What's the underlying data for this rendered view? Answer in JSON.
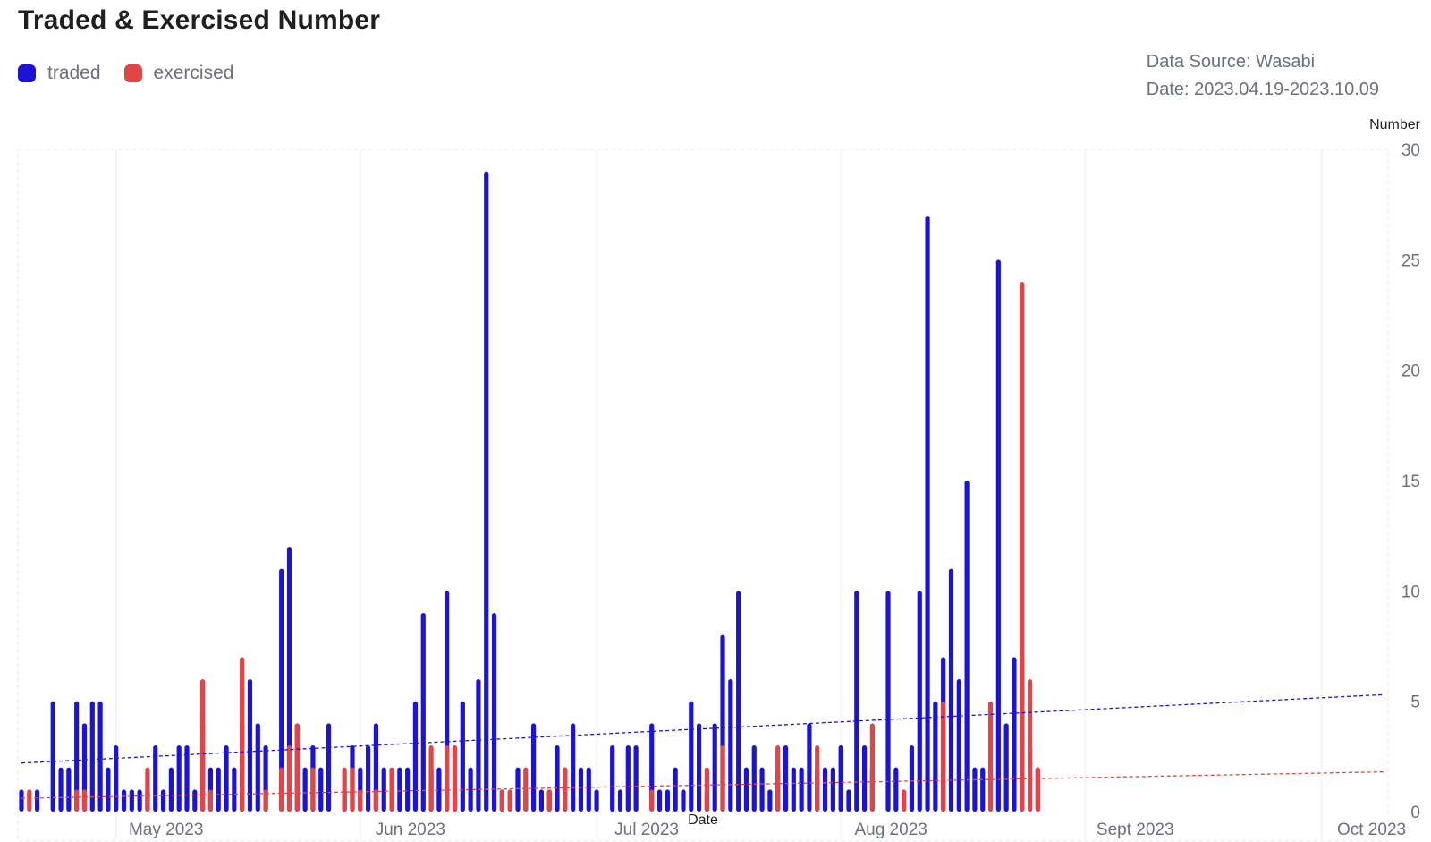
{
  "title": "Traded & Exercised Number",
  "legend": {
    "traded": "traded",
    "exercised": "exercised"
  },
  "meta": {
    "source": "Data Source: Wasabi",
    "date_range": "Date: 2023.04.19-2023.10.09"
  },
  "colors": {
    "traded": "#1b14d8",
    "exercised": "#e04646",
    "grid": "#e6e8ee"
  },
  "chart_data": {
    "type": "bar",
    "title": "Traded & Exercised Number",
    "xlabel": "Date",
    "ylabel": "Number",
    "ylim": [
      0,
      30
    ],
    "yticks": [
      0,
      5,
      10,
      15,
      20,
      25,
      30
    ],
    "x_tick_labels": [
      "May 2023",
      "Jun 2023",
      "Jul 2023",
      "Aug 2023",
      "Sept 2023",
      "Oct 2023"
    ],
    "x_tick_dates": [
      "2023-05-01",
      "2023-06-01",
      "2023-07-01",
      "2023-08-01",
      "2023-09-01",
      "2023-10-01"
    ],
    "x_range": [
      "2023-04-19",
      "2023-10-09"
    ],
    "legend_position": "top-left",
    "grid": false,
    "series": [
      {
        "name": "traded",
        "points": [
          [
            "2023-04-19",
            1
          ],
          [
            "2023-04-21",
            1
          ],
          [
            "2023-04-23",
            5
          ],
          [
            "2023-04-24",
            2
          ],
          [
            "2023-04-25",
            2
          ],
          [
            "2023-04-26",
            5
          ],
          [
            "2023-04-27",
            4
          ],
          [
            "2023-04-28",
            5
          ],
          [
            "2023-04-29",
            5
          ],
          [
            "2023-04-30",
            2
          ],
          [
            "2023-05-01",
            3
          ],
          [
            "2023-05-02",
            1
          ],
          [
            "2023-05-03",
            1
          ],
          [
            "2023-05-04",
            1
          ],
          [
            "2023-05-05",
            1
          ],
          [
            "2023-05-06",
            3
          ],
          [
            "2023-05-07",
            1
          ],
          [
            "2023-05-08",
            2
          ],
          [
            "2023-05-09",
            3
          ],
          [
            "2023-05-10",
            3
          ],
          [
            "2023-05-11",
            1
          ],
          [
            "2023-05-12",
            4
          ],
          [
            "2023-05-13",
            2
          ],
          [
            "2023-05-14",
            2
          ],
          [
            "2023-05-15",
            3
          ],
          [
            "2023-05-16",
            2
          ],
          [
            "2023-05-17",
            4
          ],
          [
            "2023-05-18",
            6
          ],
          [
            "2023-05-19",
            4
          ],
          [
            "2023-05-20",
            3
          ],
          [
            "2023-05-22",
            11
          ],
          [
            "2023-05-23",
            12
          ],
          [
            "2023-05-24",
            4
          ],
          [
            "2023-05-25",
            2
          ],
          [
            "2023-05-26",
            3
          ],
          [
            "2023-05-27",
            2
          ],
          [
            "2023-05-28",
            4
          ],
          [
            "2023-05-30",
            1
          ],
          [
            "2023-05-31",
            3
          ],
          [
            "2023-06-01",
            2
          ],
          [
            "2023-06-02",
            3
          ],
          [
            "2023-06-03",
            4
          ],
          [
            "2023-06-04",
            2
          ],
          [
            "2023-06-06",
            2
          ],
          [
            "2023-06-07",
            2
          ],
          [
            "2023-06-08",
            5
          ],
          [
            "2023-06-09",
            9
          ],
          [
            "2023-06-10",
            2
          ],
          [
            "2023-06-11",
            2
          ],
          [
            "2023-06-12",
            10
          ],
          [
            "2023-06-13",
            1
          ],
          [
            "2023-06-14",
            5
          ],
          [
            "2023-06-15",
            2
          ],
          [
            "2023-06-16",
            6
          ],
          [
            "2023-06-17",
            29
          ],
          [
            "2023-06-18",
            9
          ],
          [
            "2023-06-19",
            1
          ],
          [
            "2023-06-21",
            2
          ],
          [
            "2023-06-22",
            1
          ],
          [
            "2023-06-23",
            4
          ],
          [
            "2023-06-24",
            1
          ],
          [
            "2023-06-25",
            1
          ],
          [
            "2023-06-26",
            3
          ],
          [
            "2023-06-27",
            2
          ],
          [
            "2023-06-28",
            4
          ],
          [
            "2023-06-29",
            2
          ],
          [
            "2023-06-30",
            2
          ],
          [
            "2023-07-01",
            1
          ],
          [
            "2023-07-03",
            3
          ],
          [
            "2023-07-04",
            1
          ],
          [
            "2023-07-05",
            3
          ],
          [
            "2023-07-06",
            3
          ],
          [
            "2023-07-08",
            4
          ],
          [
            "2023-07-09",
            1
          ],
          [
            "2023-07-10",
            1
          ],
          [
            "2023-07-11",
            2
          ],
          [
            "2023-07-12",
            1
          ],
          [
            "2023-07-13",
            5
          ],
          [
            "2023-07-14",
            4
          ],
          [
            "2023-07-15",
            1
          ],
          [
            "2023-07-16",
            4
          ],
          [
            "2023-07-17",
            8
          ],
          [
            "2023-07-18",
            6
          ],
          [
            "2023-07-19",
            10
          ],
          [
            "2023-07-20",
            2
          ],
          [
            "2023-07-21",
            3
          ],
          [
            "2023-07-22",
            2
          ],
          [
            "2023-07-23",
            1
          ],
          [
            "2023-07-24",
            2
          ],
          [
            "2023-07-25",
            3
          ],
          [
            "2023-07-26",
            2
          ],
          [
            "2023-07-27",
            2
          ],
          [
            "2023-07-28",
            4
          ],
          [
            "2023-07-29",
            2
          ],
          [
            "2023-07-30",
            2
          ],
          [
            "2023-07-31",
            2
          ],
          [
            "2023-08-01",
            3
          ],
          [
            "2023-08-02",
            1
          ],
          [
            "2023-08-03",
            10
          ],
          [
            "2023-08-04",
            3
          ],
          [
            "2023-08-05",
            2
          ],
          [
            "2023-08-07",
            10
          ],
          [
            "2023-08-08",
            2
          ],
          [
            "2023-08-10",
            3
          ],
          [
            "2023-08-11",
            10
          ],
          [
            "2023-08-12",
            27
          ],
          [
            "2023-08-13",
            5
          ],
          [
            "2023-08-14",
            7
          ],
          [
            "2023-08-15",
            11
          ],
          [
            "2023-08-16",
            6
          ],
          [
            "2023-08-17",
            15
          ],
          [
            "2023-08-18",
            2
          ],
          [
            "2023-08-19",
            2
          ],
          [
            "2023-08-20",
            2
          ],
          [
            "2023-08-21",
            25
          ],
          [
            "2023-08-22",
            4
          ],
          [
            "2023-08-23",
            7
          ],
          [
            "2023-08-24",
            7
          ],
          [
            "2023-08-25",
            3
          ],
          [
            "2023-08-26",
            2
          ]
        ]
      },
      {
        "name": "exercised",
        "points": [
          [
            "2023-04-20",
            1
          ],
          [
            "2023-04-26",
            1
          ],
          [
            "2023-04-27",
            1
          ],
          [
            "2023-05-05",
            2
          ],
          [
            "2023-05-12",
            6
          ],
          [
            "2023-05-13",
            1
          ],
          [
            "2023-05-17",
            7
          ],
          [
            "2023-05-20",
            1
          ],
          [
            "2023-05-22",
            2
          ],
          [
            "2023-05-23",
            3
          ],
          [
            "2023-05-24",
            4
          ],
          [
            "2023-05-26",
            2
          ],
          [
            "2023-05-30",
            2
          ],
          [
            "2023-05-31",
            2
          ],
          [
            "2023-06-01",
            1
          ],
          [
            "2023-06-03",
            1
          ],
          [
            "2023-06-05",
            2
          ],
          [
            "2023-06-10",
            3
          ],
          [
            "2023-06-12",
            3
          ],
          [
            "2023-06-13",
            3
          ],
          [
            "2023-06-19",
            1
          ],
          [
            "2023-06-20",
            1
          ],
          [
            "2023-06-22",
            2
          ],
          [
            "2023-06-25",
            1
          ],
          [
            "2023-06-27",
            2
          ],
          [
            "2023-07-08",
            1
          ],
          [
            "2023-07-15",
            2
          ],
          [
            "2023-07-17",
            3
          ],
          [
            "2023-07-24",
            3
          ],
          [
            "2023-07-29",
            3
          ],
          [
            "2023-08-05",
            4
          ],
          [
            "2023-08-09",
            1
          ],
          [
            "2023-08-14",
            5
          ],
          [
            "2023-08-20",
            5
          ],
          [
            "2023-08-24",
            24
          ],
          [
            "2023-08-25",
            6
          ],
          [
            "2023-08-26",
            2
          ]
        ]
      }
    ],
    "trendlines": [
      {
        "series": "traded",
        "start": [
          "2023-04-19",
          2.2
        ],
        "end": [
          "2023-10-09",
          5.3
        ]
      },
      {
        "series": "exercised",
        "start": [
          "2023-04-19",
          0.6
        ],
        "end": [
          "2023-10-09",
          1.8
        ]
      }
    ]
  }
}
